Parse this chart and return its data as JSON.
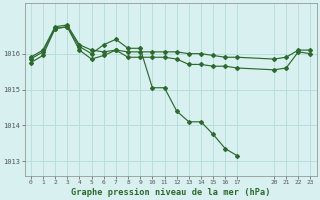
{
  "background_color": "#d8f0f0",
  "grid_color": "#b8dede",
  "line_color": "#2d6a2d",
  "title": "Graphe pression niveau de la mer (hPa)",
  "xlim": [
    -0.5,
    23.5
  ],
  "ylim": [
    1012.6,
    1017.4
  ],
  "yticks": [
    1013,
    1014,
    1015,
    1016
  ],
  "xticks": [
    0,
    1,
    2,
    3,
    4,
    5,
    6,
    7,
    8,
    9,
    10,
    11,
    12,
    13,
    14,
    15,
    16,
    17,
    20,
    21,
    22,
    23
  ],
  "series": [
    {
      "x": [
        0,
        1,
        2,
        3,
        4,
        5,
        6,
        7,
        8,
        9,
        10,
        11,
        12,
        13,
        14,
        15,
        16,
        17,
        20,
        21,
        22,
        23
      ],
      "y": [
        1015.9,
        1016.1,
        1016.75,
        1016.8,
        1016.25,
        1016.1,
        1016.05,
        1016.1,
        1016.05,
        1016.05,
        1016.05,
        1016.05,
        1016.05,
        1016.0,
        1016.0,
        1015.95,
        1015.9,
        1015.9,
        1015.85,
        1015.9,
        1016.1,
        1016.1
      ]
    },
    {
      "x": [
        0,
        1,
        2,
        3,
        4,
        5,
        6,
        7,
        8,
        9,
        10,
        11,
        12,
        13,
        14,
        15,
        16,
        17
      ],
      "y": [
        1015.85,
        1016.05,
        1016.7,
        1016.75,
        1016.2,
        1016.0,
        1016.25,
        1016.4,
        1016.15,
        1016.15,
        1015.05,
        1015.05,
        1014.4,
        1014.1,
        1014.1,
        1013.75,
        1013.35,
        1013.15
      ]
    },
    {
      "x": [
        0,
        1,
        2,
        3,
        4,
        5,
        6,
        7,
        8,
        9,
        10,
        11,
        12,
        13,
        14,
        15,
        16,
        17,
        20,
        21,
        22,
        23
      ],
      "y": [
        1015.75,
        1015.95,
        1016.7,
        1016.75,
        1016.1,
        1015.85,
        1015.95,
        1016.1,
        1015.9,
        1015.9,
        1015.9,
        1015.9,
        1015.85,
        1015.7,
        1015.7,
        1015.65,
        1015.65,
        1015.6,
        1015.55,
        1015.6,
        1016.05,
        1016.0
      ]
    }
  ]
}
